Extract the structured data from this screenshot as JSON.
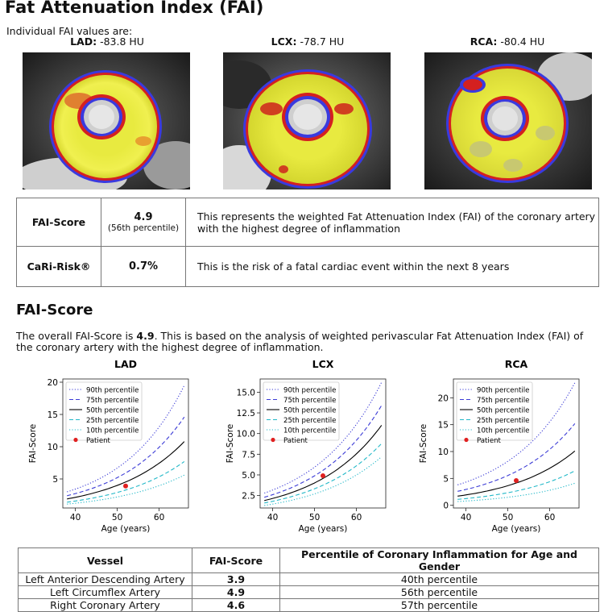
{
  "title": "Fat Attenuation Index (FAI)",
  "intro": "Individual FAI values are:",
  "vessels": [
    {
      "name": "LAD:",
      "value": "-83.8 HU"
    },
    {
      "name": "LCX:",
      "value": "-78.7 HU"
    },
    {
      "name": "RCA:",
      "value": "-80.4 HU"
    }
  ],
  "summary": [
    {
      "label": "FAI-Score",
      "value": "4.9",
      "sub": "(56th percentile)",
      "desc": "This represents the weighted Fat Attenuation Index (FAI) of the coronary artery with the highest degree of inflammation"
    },
    {
      "label": "CaRi-Risk®",
      "value": "0.7%",
      "sub": "",
      "desc": "This is the risk of a fatal cardiac event within the next 8 years"
    }
  ],
  "section2_title": "FAI-Score",
  "overall_pre": "The overall FAI-Score is ",
  "overall_score": "4.9",
  "overall_post": ". This is based on the analysis of weighted perivascular Fat Attenuation Index (FAI) of the coronary artery with the highest degree of inflammation.",
  "chart_data": [
    {
      "type": "line",
      "title": "LAD",
      "xlabel": "Age (years)",
      "ylabel": "FAI-Score",
      "xlim": [
        37,
        67
      ],
      "ylim": [
        0.5,
        20.5
      ],
      "xticks": [
        40,
        50,
        60
      ],
      "yticks": [
        5,
        10,
        15,
        20
      ],
      "ytick_labels": [
        "5",
        "10",
        "15",
        "20"
      ],
      "x": [
        38,
        66
      ],
      "series": [
        {
          "name": "90th percentile",
          "style": "dotted",
          "color": "#3b3bd6",
          "values": [
            3.0,
            19.5
          ]
        },
        {
          "name": "75th percentile",
          "style": "dashed",
          "color": "#3b3bd6",
          "values": [
            2.4,
            14.6
          ]
        },
        {
          "name": "50th percentile",
          "style": "solid",
          "color": "#000000",
          "values": [
            1.9,
            10.8
          ]
        },
        {
          "name": "25th percentile",
          "style": "dashed",
          "color": "#22b8c8",
          "values": [
            1.4,
            7.7
          ]
        },
        {
          "name": "10th percentile",
          "style": "dotted",
          "color": "#22b8c8",
          "values": [
            1.1,
            5.6
          ]
        }
      ],
      "patient": {
        "name": "Patient",
        "x": 52,
        "y": 3.9,
        "color": "#e02020"
      },
      "legend": "top-left"
    },
    {
      "type": "line",
      "title": "LCX",
      "xlabel": "Age (years)",
      "ylabel": "FAI-Score",
      "xlim": [
        37,
        67
      ],
      "ylim": [
        1.0,
        16.6
      ],
      "xticks": [
        40,
        50,
        60
      ],
      "yticks": [
        2.5,
        5.0,
        7.5,
        10.0,
        12.5,
        15.0
      ],
      "ytick_labels": [
        "2.5",
        "5.0",
        "7.5",
        "10.0",
        "12.5",
        "15.0"
      ],
      "x": [
        38,
        66
      ],
      "series": [
        {
          "name": "90th percentile",
          "style": "dotted",
          "color": "#3b3bd6",
          "values": [
            2.8,
            16.2
          ]
        },
        {
          "name": "75th percentile",
          "style": "dashed",
          "color": "#3b3bd6",
          "values": [
            2.3,
            13.4
          ]
        },
        {
          "name": "50th percentile",
          "style": "solid",
          "color": "#000000",
          "values": [
            1.9,
            11.0
          ]
        },
        {
          "name": "25th percentile",
          "style": "dashed",
          "color": "#22b8c8",
          "values": [
            1.6,
            8.8
          ]
        },
        {
          "name": "10th percentile",
          "style": "dotted",
          "color": "#22b8c8",
          "values": [
            1.3,
            7.2
          ]
        }
      ],
      "patient": {
        "name": "Patient",
        "x": 52,
        "y": 4.9,
        "color": "#e02020"
      },
      "legend": "top-left"
    },
    {
      "type": "line",
      "title": "RCA",
      "xlabel": "Age (years)",
      "ylabel": "FAI-Score",
      "xlim": [
        37,
        67
      ],
      "ylim": [
        -0.5,
        23.5
      ],
      "xticks": [
        40,
        50,
        60
      ],
      "yticks": [
        0,
        5,
        10,
        15,
        20
      ],
      "ytick_labels": [
        "0",
        "5",
        "10",
        "15",
        "20"
      ],
      "x": [
        38,
        66
      ],
      "series": [
        {
          "name": "90th percentile",
          "style": "dotted",
          "color": "#3b3bd6",
          "values": [
            3.8,
            22.8
          ]
        },
        {
          "name": "75th percentile",
          "style": "dashed",
          "color": "#3b3bd6",
          "values": [
            2.6,
            15.2
          ]
        },
        {
          "name": "50th percentile",
          "style": "solid",
          "color": "#000000",
          "values": [
            1.7,
            10.1
          ]
        },
        {
          "name": "25th percentile",
          "style": "dashed",
          "color": "#22b8c8",
          "values": [
            1.1,
            6.4
          ]
        },
        {
          "name": "10th percentile",
          "style": "dotted",
          "color": "#22b8c8",
          "values": [
            0.7,
            4.1
          ]
        }
      ],
      "patient": {
        "name": "Patient",
        "x": 52,
        "y": 4.6,
        "color": "#e02020"
      },
      "legend": "top-left"
    }
  ],
  "bottom_table": {
    "headers": [
      "Vessel",
      "FAI-Score",
      "Percentile of Coronary Inflammation for Age and Gender"
    ],
    "rows": [
      {
        "vessel": "Left Anterior Descending Artery",
        "score": "3.9",
        "percentile": "40th percentile"
      },
      {
        "vessel": "Left Circumflex Artery",
        "score": "4.9",
        "percentile": "56th percentile"
      },
      {
        "vessel": "Right Coronary Artery",
        "score": "4.6",
        "percentile": "57th percentile"
      }
    ]
  }
}
